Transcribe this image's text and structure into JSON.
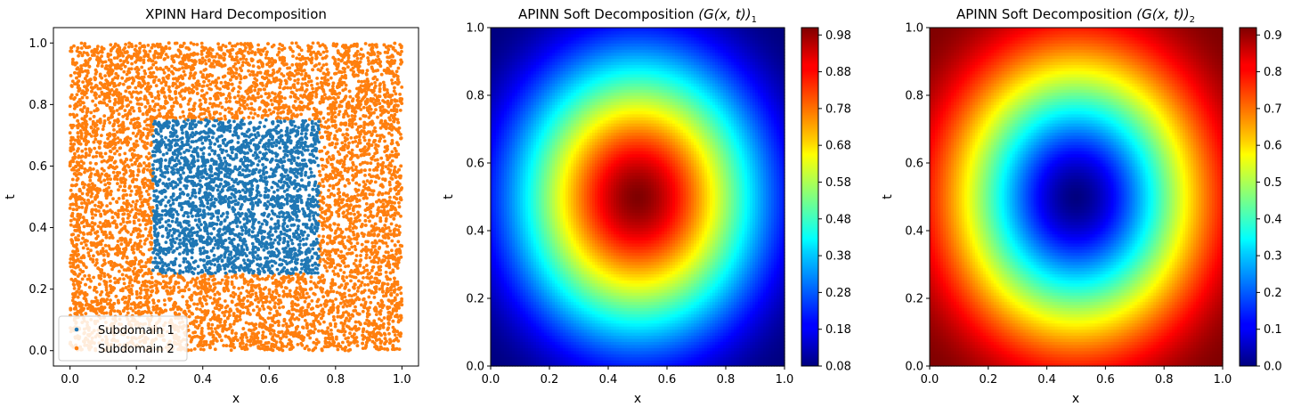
{
  "chart_data": [
    {
      "type": "scatter",
      "title": "XPINN Hard Decomposition",
      "xlabel": "x",
      "ylabel": "t",
      "xlim": [
        -0.05,
        1.05
      ],
      "ylim": [
        -0.05,
        1.05
      ],
      "xticks": [
        "0.0",
        "0.2",
        "0.4",
        "0.6",
        "0.8",
        "1.0"
      ],
      "yticks": [
        "0.0",
        "0.2",
        "0.4",
        "0.6",
        "0.8",
        "1.0"
      ],
      "legend_position": "lower-left",
      "grid": false,
      "series": [
        {
          "name": "Subdomain 1",
          "color": "#1f77b4",
          "region": {
            "x": [
              0.25,
              0.75
            ],
            "y": [
              0.25,
              0.75
            ]
          },
          "approx_point_count": 2500
        },
        {
          "name": "Subdomain 2",
          "color": "#ff7f0e",
          "region": {
            "x": [
              0.0,
              1.0
            ],
            "y": [
              0.0,
              1.0
            ],
            "excluding": {
              "x": [
                0.25,
                0.75
              ],
              "y": [
                0.25,
                0.75
              ]
            }
          },
          "approx_point_count": 7500
        }
      ]
    },
    {
      "type": "heatmap",
      "title_prefix": "APINN Soft Decomposition ",
      "title_math": "(G(x, t))",
      "title_subscript": "1",
      "xlabel": "x",
      "ylabel": "t",
      "xlim": [
        0.0,
        1.0
      ],
      "ylim": [
        0.0,
        1.0
      ],
      "xticks": [
        "0.0",
        "0.2",
        "0.4",
        "0.6",
        "0.8",
        "1.0"
      ],
      "yticks": [
        "0.0",
        "0.2",
        "0.4",
        "0.6",
        "0.8",
        "1.0"
      ],
      "colormap": "jet",
      "center": [
        0.5,
        0.5
      ],
      "value_at_center": 1.0,
      "value_at_corner": 0.08,
      "pattern": "radial, maximum at center",
      "colorbar": {
        "range": [
          0.08,
          1.0
        ],
        "ticks": [
          "0.08",
          "0.18",
          "0.28",
          "0.38",
          "0.48",
          "0.58",
          "0.68",
          "0.78",
          "0.88",
          "0.98"
        ]
      }
    },
    {
      "type": "heatmap",
      "title_prefix": "APINN Soft Decomposition ",
      "title_math": "(G(x, t))",
      "title_subscript": "2",
      "xlabel": "x",
      "ylabel": "t",
      "xlim": [
        0.0,
        1.0
      ],
      "ylim": [
        0.0,
        1.0
      ],
      "xticks": [
        "0.0",
        "0.2",
        "0.4",
        "0.6",
        "0.8",
        "1.0"
      ],
      "yticks": [
        "0.0",
        "0.2",
        "0.4",
        "0.6",
        "0.8",
        "1.0"
      ],
      "colormap": "jet",
      "center": [
        0.5,
        0.5
      ],
      "value_at_center": 0.0,
      "value_at_corner": 0.92,
      "pattern": "radial, minimum at center",
      "colorbar": {
        "range": [
          0.0,
          0.92
        ],
        "ticks": [
          "0.0",
          "0.1",
          "0.2",
          "0.3",
          "0.4",
          "0.5",
          "0.6",
          "0.7",
          "0.8",
          "0.9"
        ]
      }
    }
  ]
}
